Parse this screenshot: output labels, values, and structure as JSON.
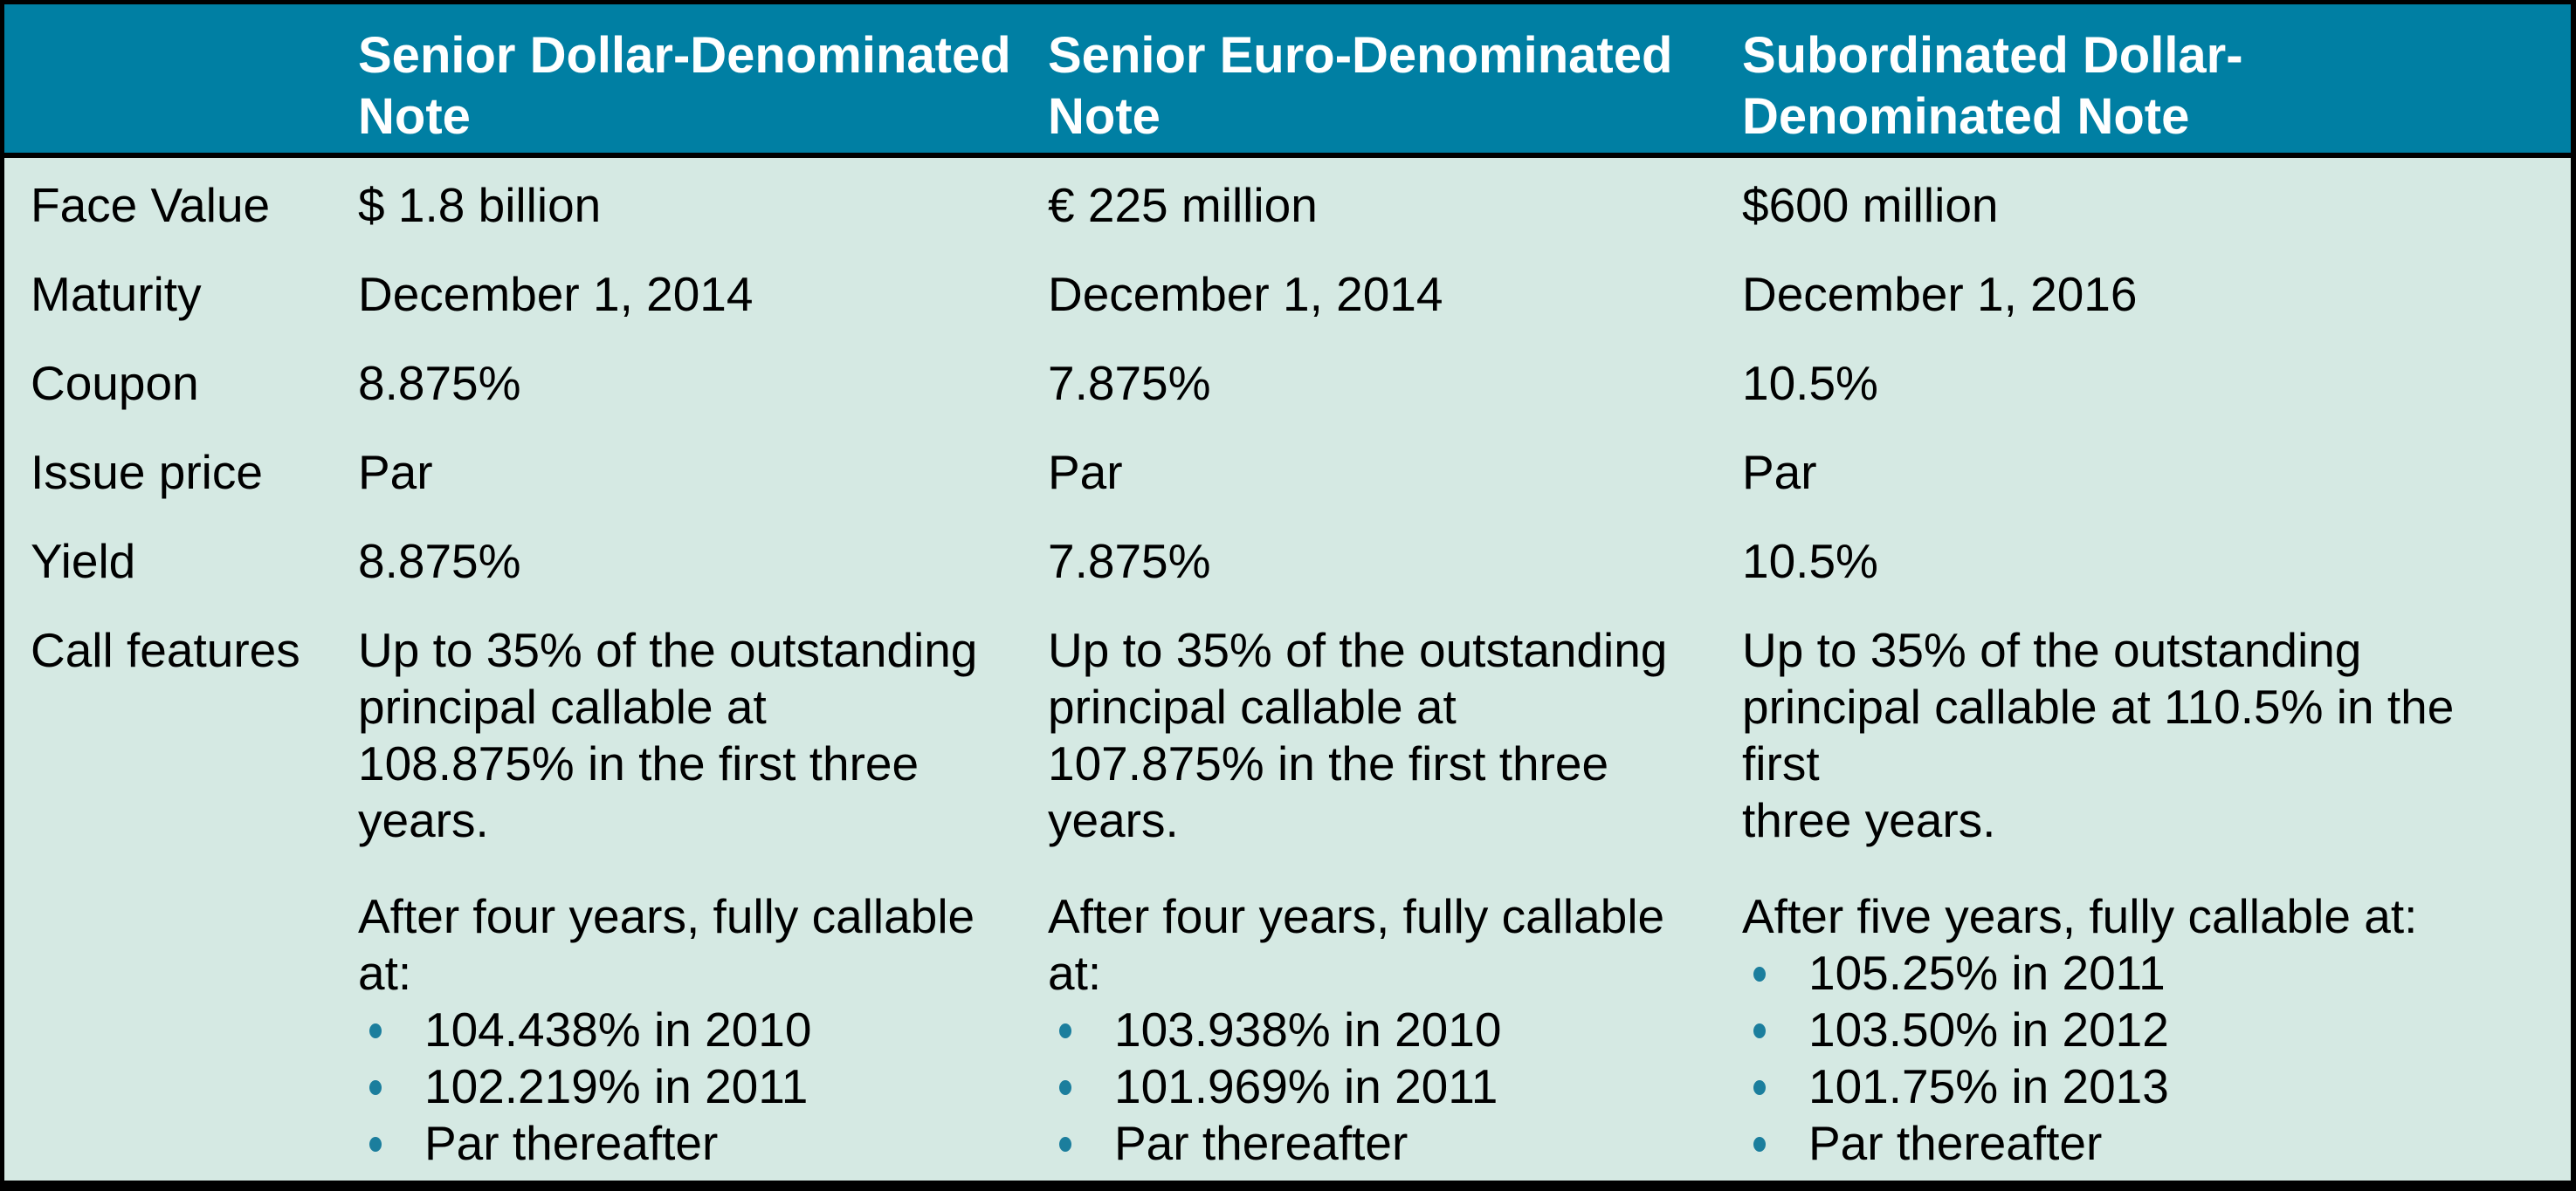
{
  "header": {
    "row_label_header": "",
    "columns": [
      "Senior Dollar-Denominated Note",
      "Senior Euro-Denominated Note",
      "Subordinated Dollar-Denominated Note"
    ]
  },
  "rows": [
    {
      "label": "Face Value",
      "values": [
        "$ 1.8 billion",
        "€ 225 million",
        "$600 million"
      ]
    },
    {
      "label": "Maturity",
      "values": [
        "December 1, 2014",
        "December 1, 2014",
        "December 1, 2016"
      ]
    },
    {
      "label": "Coupon",
      "values": [
        "8.875%",
        "7.875%",
        "10.5%"
      ]
    },
    {
      "label": "Issue price",
      "values": [
        "Par",
        "Par",
        "Par"
      ]
    },
    {
      "label": "Yield",
      "values": [
        "8.875%",
        "7.875%",
        "10.5%"
      ]
    }
  ],
  "call_features": {
    "label": "Call features",
    "columns": [
      {
        "paragraph1": "Up to 35% of the outstanding\nprincipal callable at\n108.875% in the first three\nyears.",
        "paragraph2": "After four years, fully callable\nat:",
        "bullets": [
          "104.438% in 2010",
          "102.219% in 2011",
          "Par thereafter"
        ]
      },
      {
        "paragraph1": "Up to 35% of the outstanding\nprincipal callable at\n107.875% in the first three\nyears.",
        "paragraph2": "After four years, fully callable\nat:",
        "bullets": [
          "103.938% in 2010",
          "101.969% in 2011",
          "Par thereafter"
        ]
      },
      {
        "paragraph1": "Up to 35% of the outstanding\nprincipal callable at 110.5% in the first\nthree years.",
        "paragraph2": "After five years, fully callable at:",
        "bullets": [
          "105.25% in 2011",
          "103.50% in 2012",
          "101.75% in 2013",
          "Par thereafter"
        ]
      }
    ]
  },
  "colors": {
    "header_bg": "#007FA3",
    "body_bg": "#D5E9E3",
    "bullet": "#1B7E9D",
    "border": "#000000",
    "header_text": "#FFFFFF",
    "body_text": "#000000"
  }
}
